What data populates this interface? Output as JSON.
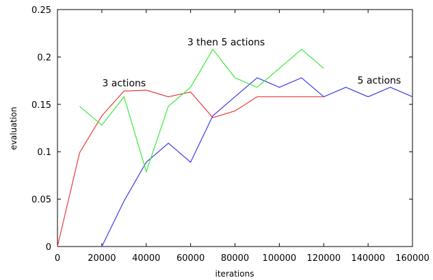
{
  "chart_data": {
    "type": "line",
    "xlabel": "iterations",
    "ylabel": "evaluation",
    "xlim": [
      0,
      160000
    ],
    "ylim": [
      0,
      0.25
    ],
    "x_ticks": [
      0,
      20000,
      40000,
      60000,
      80000,
      100000,
      120000,
      140000,
      160000
    ],
    "x_tick_labels": [
      "0",
      "20000",
      "40000",
      "60000",
      "80000",
      "100000",
      "120000",
      "140000",
      "160000"
    ],
    "y_ticks": [
      0,
      0.05,
      0.1,
      0.15,
      0.2,
      0.25
    ],
    "y_tick_labels": [
      "0",
      "0.05",
      "0.1",
      "0.15",
      "0.2",
      "0.25"
    ],
    "grid": false,
    "legend": "none",
    "series": [
      {
        "color": "#e83a3a",
        "x": [
          0,
          10000,
          20000,
          30000,
          40000,
          50000,
          60000,
          70000,
          80000,
          90000,
          100000,
          110000,
          120000
        ],
        "y": [
          0,
          0.099,
          0.138,
          0.164,
          0.165,
          0.158,
          0.163,
          0.136,
          0.143,
          0.158,
          0.158,
          0.158,
          0.158
        ]
      },
      {
        "color": "#3a3ae8",
        "x": [
          20000,
          30000,
          40000,
          50000,
          60000,
          70000,
          80000,
          90000,
          100000,
          110000,
          120000,
          130000,
          140000,
          150000,
          160000
        ],
        "y": [
          0,
          0.048,
          0.089,
          0.109,
          0.089,
          0.138,
          0.158,
          0.178,
          0.168,
          0.178,
          0.158,
          0.168,
          0.158,
          0.168,
          0.158
        ]
      },
      {
        "color": "#3ae83a",
        "x": [
          10000,
          20000,
          30000,
          40000,
          50000,
          60000,
          70000,
          80000,
          90000,
          100000,
          110000,
          120000
        ],
        "y": [
          0.148,
          0.128,
          0.158,
          0.079,
          0.148,
          0.168,
          0.208,
          0.178,
          0.168,
          0.188,
          0.208,
          0.188
        ]
      }
    ],
    "annotations": [
      {
        "text": "3 actions",
        "x": 30000,
        "y": 0.169
      },
      {
        "text": "3 then 5 actions",
        "x": 76000,
        "y": 0.212
      },
      {
        "text": "5 actions",
        "x": 145000,
        "y": 0.172
      }
    ]
  }
}
